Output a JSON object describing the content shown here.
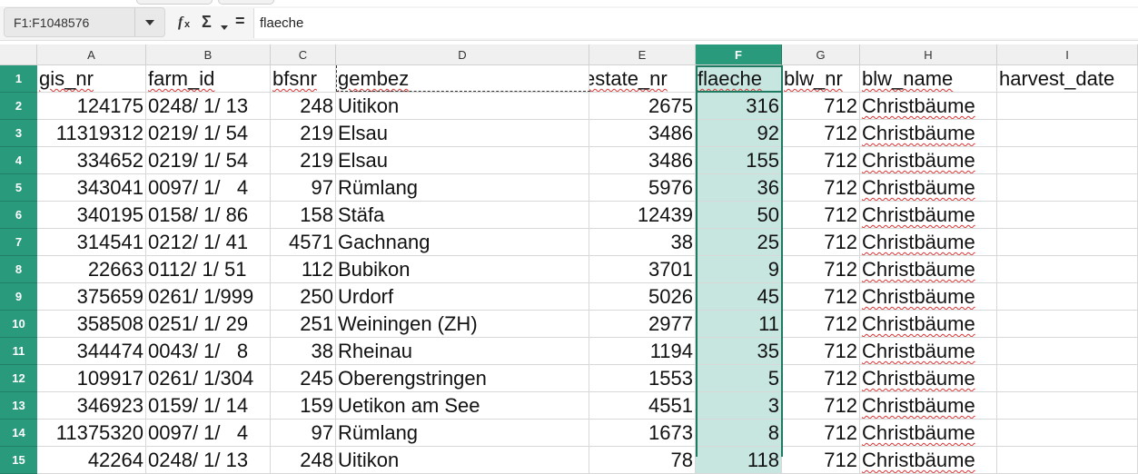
{
  "name_box": "F1:F1048576",
  "formula": {
    "fx_icon": "fx-icon",
    "sigma_icon": "sigma-icon",
    "equals": "=",
    "content": "flaeche"
  },
  "columns": [
    "A",
    "B",
    "C",
    "D",
    "E",
    "F",
    "G",
    "H",
    "I"
  ],
  "selected_column": "F",
  "header_row": [
    "gis_nr",
    "farm_id",
    "bfsnr",
    "gembez",
    "estate_nr",
    "flaeche",
    "blw_nr",
    "blw_name",
    "harvest_date"
  ],
  "rows": [
    {
      "n": "2",
      "a": "124175",
      "b": "0248/ 1/ 13",
      "c": "248",
      "d": "Uitikon",
      "e": "2675",
      "f": "316",
      "g": "712",
      "h": "Christbäume",
      "i": ""
    },
    {
      "n": "3",
      "a": "11319312",
      "b": "0219/ 1/ 54",
      "c": "219",
      "d": "Elsau",
      "e": "3486",
      "f": "92",
      "g": "712",
      "h": "Christbäume",
      "i": ""
    },
    {
      "n": "4",
      "a": "334652",
      "b": "0219/ 1/ 54",
      "c": "219",
      "d": "Elsau",
      "e": "3486",
      "f": "155",
      "g": "712",
      "h": "Christbäume",
      "i": ""
    },
    {
      "n": "5",
      "a": "343041",
      "b": "0097/ 1/   4",
      "c": "97",
      "d": "Rümlang",
      "e": "5976",
      "f": "36",
      "g": "712",
      "h": "Christbäume",
      "i": ""
    },
    {
      "n": "6",
      "a": "340195",
      "b": "0158/ 1/ 86",
      "c": "158",
      "d": "Stäfa",
      "e": "12439",
      "f": "50",
      "g": "712",
      "h": "Christbäume",
      "i": ""
    },
    {
      "n": "7",
      "a": "314541",
      "b": "0212/ 1/ 41",
      "c": "4571",
      "d": "Gachnang",
      "e": "38",
      "f": "25",
      "g": "712",
      "h": "Christbäume",
      "i": ""
    },
    {
      "n": "8",
      "a": "22663",
      "b": "0112/ 1/ 51",
      "c": "112",
      "d": "Bubikon",
      "e": "3701",
      "f": "9",
      "g": "712",
      "h": "Christbäume",
      "i": ""
    },
    {
      "n": "9",
      "a": "375659",
      "b": "0261/ 1/999",
      "c": "250",
      "d": "Urdorf",
      "e": "5026",
      "f": "45",
      "g": "712",
      "h": "Christbäume",
      "i": ""
    },
    {
      "n": "10",
      "a": "358508",
      "b": "0251/ 1/ 29",
      "c": "251",
      "d": "Weiningen (ZH)",
      "e": "2977",
      "f": "11",
      "g": "712",
      "h": "Christbäume",
      "i": ""
    },
    {
      "n": "11",
      "a": "344474",
      "b": "0043/ 1/   8",
      "c": "38",
      "d": "Rheinau",
      "e": "1194",
      "f": "35",
      "g": "712",
      "h": "Christbäume",
      "i": ""
    },
    {
      "n": "12",
      "a": "109917",
      "b": "0261/ 1/304",
      "c": "245",
      "d": "Oberengstringen",
      "e": "1553",
      "f": "5",
      "g": "712",
      "h": "Christbäume",
      "i": ""
    },
    {
      "n": "13",
      "a": "346923",
      "b": "0159/ 1/ 14",
      "c": "159",
      "d": "Uetikon am See",
      "e": "4551",
      "f": "3",
      "g": "712",
      "h": "Christbäume",
      "i": ""
    },
    {
      "n": "14",
      "a": "11375320",
      "b": "0097/ 1/   4",
      "c": "97",
      "d": "Rümlang",
      "e": "1673",
      "f": "8",
      "g": "712",
      "h": "Christbäume",
      "i": ""
    },
    {
      "n": "15",
      "a": "42264",
      "b": "0248/ 1/ 13",
      "c": "248",
      "d": "Uitikon",
      "e": "78",
      "f": "118",
      "g": "712",
      "h": "Christbäume",
      "i": ""
    }
  ]
}
